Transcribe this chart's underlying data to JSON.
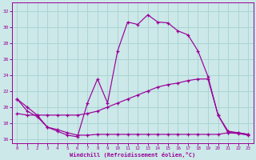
{
  "xlabel": "Windchill (Refroidissement éolien,°C)",
  "xticks": [
    0,
    1,
    2,
    3,
    4,
    5,
    6,
    7,
    8,
    9,
    10,
    11,
    12,
    13,
    14,
    15,
    16,
    17,
    18,
    19,
    20,
    21,
    22,
    23
  ],
  "yticks": [
    16,
    18,
    20,
    22,
    24,
    26,
    28,
    30,
    32
  ],
  "ylim": [
    15.5,
    33.0
  ],
  "xlim": [
    -0.5,
    23.5
  ],
  "bg_color": "#cce8e8",
  "line_color": "#990099",
  "grid_color": "#aad4d4",
  "series1": {
    "x": [
      0,
      1,
      2,
      3,
      4,
      5,
      6,
      7,
      8,
      9,
      10,
      11,
      12,
      13,
      14,
      15,
      16,
      17,
      18,
      19,
      20,
      21,
      22,
      23
    ],
    "y": [
      21.0,
      20.0,
      19.0,
      17.5,
      17.0,
      16.5,
      16.3,
      20.5,
      23.5,
      20.5,
      27.0,
      30.6,
      30.3,
      31.5,
      30.6,
      30.5,
      29.5,
      29.0,
      27.0,
      23.8,
      19.0,
      16.8,
      16.7,
      16.5
    ]
  },
  "series2": {
    "x": [
      0,
      1,
      2,
      3,
      4,
      5,
      6,
      7,
      8,
      9,
      10,
      11,
      12,
      13,
      14,
      15,
      16,
      17,
      18,
      19,
      20,
      21,
      22,
      23
    ],
    "y": [
      19.2,
      19.0,
      19.0,
      19.0,
      19.0,
      19.0,
      19.0,
      19.2,
      19.5,
      20.0,
      20.5,
      21.0,
      21.5,
      22.0,
      22.5,
      22.8,
      23.0,
      23.3,
      23.5,
      23.5,
      19.0,
      17.0,
      16.8,
      16.6
    ]
  },
  "series3": {
    "x": [
      0,
      1,
      2,
      3,
      4,
      5,
      6,
      7,
      8,
      9,
      10,
      11,
      12,
      13,
      14,
      15,
      16,
      17,
      18,
      19,
      20,
      21,
      22,
      23
    ],
    "y": [
      21.0,
      19.5,
      18.8,
      17.5,
      17.2,
      16.8,
      16.5,
      16.5,
      16.6,
      16.6,
      16.6,
      16.6,
      16.6,
      16.6,
      16.6,
      16.6,
      16.6,
      16.6,
      16.6,
      16.6,
      16.6,
      16.8,
      16.8,
      16.6
    ]
  }
}
